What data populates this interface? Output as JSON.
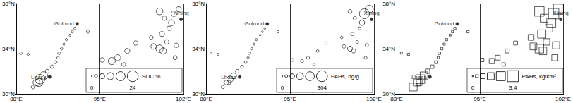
{
  "chart_data": [
    {
      "type": "scatter",
      "marker": "circle",
      "color": "#000000",
      "grid": true,
      "xlim": [
        88,
        102
      ],
      "ylim": [
        30,
        38
      ],
      "xticks": [
        {
          "value": 88,
          "label": "88°E"
        },
        {
          "value": 95,
          "label": "95°E"
        },
        {
          "value": 102,
          "label": "102°E"
        }
      ],
      "yticks": [
        {
          "value": 30,
          "label": "30°N"
        },
        {
          "value": 34,
          "label": "34°N"
        },
        {
          "value": 38,
          "label": "38°N"
        }
      ],
      "x": [
        92.9,
        92.7,
        92.5,
        92.2,
        92.0,
        91.8,
        91.6,
        91.5,
        91.3,
        91.0,
        90.6,
        90.3,
        90.0,
        89.7,
        89.4,
        88.4,
        89.0,
        95.2,
        96.0,
        96.5,
        97.3,
        97.0,
        98.0,
        99.5,
        100.0,
        100.3,
        100.6,
        100.2,
        100.8,
        101.0,
        100.4,
        101.2,
        100.0,
        101.6,
        99.3,
        101.4,
        101.3,
        94.0,
        89.9
      ],
      "y": [
        35.8,
        35.5,
        35.2,
        34.8,
        34.4,
        34.0,
        33.6,
        33.2,
        32.8,
        32.4,
        32.0,
        31.6,
        31.3,
        31.0,
        30.6,
        33.6,
        33.5,
        33.0,
        32.9,
        33.2,
        33.8,
        32.6,
        34.5,
        34.2,
        34.0,
        33.8,
        34.6,
        35.3,
        35.8,
        36.3,
        36.7,
        37.1,
        37.3,
        37.5,
        35.0,
        34.3,
        33.2,
        35.5,
        31.0
      ],
      "sizes": [
        0.5,
        0.4,
        0.3,
        0.5,
        0.4,
        0.6,
        0.8,
        0.5,
        1.0,
        1.5,
        2.0,
        12,
        18,
        8,
        1.5,
        0.5,
        0.5,
        3,
        9,
        6,
        4,
        2,
        3,
        5,
        10,
        7,
        3,
        4,
        3,
        6,
        3,
        5,
        8,
        4,
        2,
        3,
        2,
        1,
        12
      ],
      "size_legend": {
        "title": "SOC %",
        "values": [
          0,
          1,
          4,
          9,
          16,
          24
        ]
      },
      "cities": {
        "names": [
          "Golmud",
          "Lhasa",
          "Xining"
        ],
        "x": [
          93.1,
          90.8,
          101.8
        ],
        "y": [
          36.2,
          31.5,
          36.6
        ]
      }
    },
    {
      "type": "scatter",
      "marker": "circle",
      "color": "#000000",
      "grid": true,
      "xlim": [
        88,
        102
      ],
      "ylim": [
        30,
        38
      ],
      "xticks": [
        {
          "value": 88,
          "label": "88°E"
        },
        {
          "value": 95,
          "label": "95°E"
        },
        {
          "value": 102,
          "label": "102°E"
        }
      ],
      "yticks": [
        {
          "value": 30,
          "label": "30°N"
        },
        {
          "value": 34,
          "label": "34°N"
        },
        {
          "value": 38,
          "label": "38°N"
        }
      ],
      "x": [
        92.9,
        92.7,
        92.5,
        92.2,
        92.0,
        91.8,
        91.6,
        91.5,
        91.3,
        91.0,
        90.6,
        90.3,
        90.0,
        89.7,
        89.4,
        88.4,
        89.0,
        95.2,
        96.0,
        96.5,
        97.3,
        97.0,
        98.0,
        99.5,
        100.0,
        100.3,
        100.6,
        100.2,
        100.8,
        101.0,
        100.4,
        101.2,
        100.0,
        101.6,
        99.3,
        101.4,
        101.3,
        94.0,
        89.9
      ],
      "y": [
        35.8,
        35.5,
        35.2,
        34.8,
        34.4,
        34.0,
        33.6,
        33.2,
        32.8,
        32.4,
        32.0,
        31.6,
        31.3,
        31.0,
        30.6,
        33.6,
        33.5,
        33.0,
        32.9,
        33.2,
        33.8,
        32.6,
        34.5,
        34.2,
        34.0,
        33.8,
        34.6,
        35.3,
        35.8,
        36.3,
        36.7,
        37.1,
        37.3,
        37.5,
        35.0,
        34.3,
        33.2,
        35.5,
        31.0
      ],
      "sizes": [
        3,
        2,
        2,
        4,
        3,
        5,
        6,
        4,
        8,
        12,
        20,
        70,
        90,
        40,
        15,
        2,
        3,
        10,
        15,
        12,
        8,
        5,
        6,
        20,
        50,
        30,
        12,
        15,
        10,
        60,
        20,
        250,
        25,
        150,
        8,
        15,
        10,
        4,
        35
      ],
      "size_legend": {
        "title": "PAHs, ng/g",
        "values": [
          0,
          10,
          40,
          100,
          190,
          304
        ]
      },
      "cities": {
        "names": [
          "Golmud",
          "Lhasa",
          "Xining"
        ],
        "x": [
          93.1,
          90.8,
          101.8
        ],
        "y": [
          36.2,
          31.5,
          36.6
        ]
      }
    },
    {
      "type": "scatter",
      "marker": "square",
      "color": "#000000",
      "grid": true,
      "xlim": [
        88,
        102
      ],
      "ylim": [
        30,
        38
      ],
      "xticks": [
        {
          "value": 88,
          "label": "88°E"
        },
        {
          "value": 95,
          "label": "95°E"
        },
        {
          "value": 102,
          "label": "102°E"
        }
      ],
      "yticks": [
        {
          "value": 30,
          "label": "30°N"
        },
        {
          "value": 34,
          "label": "34°N"
        },
        {
          "value": 38,
          "label": "38°N"
        }
      ],
      "x": [
        92.9,
        92.7,
        92.5,
        92.2,
        92.0,
        91.8,
        91.6,
        91.5,
        91.3,
        91.0,
        90.6,
        90.3,
        90.0,
        89.7,
        89.4,
        88.4,
        89.0,
        95.2,
        96.0,
        96.5,
        97.3,
        97.0,
        98.0,
        99.5,
        100.0,
        100.3,
        100.6,
        100.2,
        100.8,
        101.0,
        100.4,
        101.2,
        100.0,
        101.6,
        99.3,
        101.4,
        101.3,
        94.0,
        89.9
      ],
      "y": [
        35.8,
        35.5,
        35.2,
        34.8,
        34.4,
        34.0,
        33.6,
        33.2,
        32.8,
        32.4,
        32.0,
        31.6,
        31.3,
        31.0,
        30.6,
        33.6,
        33.5,
        33.0,
        32.9,
        33.2,
        33.8,
        32.6,
        34.5,
        34.2,
        34.0,
        33.8,
        34.6,
        35.3,
        35.8,
        36.3,
        36.7,
        37.1,
        37.3,
        37.5,
        35.0,
        34.3,
        33.2,
        35.5,
        31.0
      ],
      "sizes": [
        0.05,
        0.04,
        0.03,
        0.05,
        0.04,
        0.06,
        0.08,
        0.05,
        0.1,
        0.2,
        0.4,
        1.5,
        2.0,
        1.2,
        1.6,
        0.03,
        0.05,
        0.2,
        0.6,
        0.5,
        0.3,
        0.2,
        0.3,
        1.2,
        2.0,
        1.5,
        1.0,
        1.8,
        1.4,
        2.2,
        1.6,
        3.0,
        2.5,
        2.8,
        0.8,
        1.3,
        0.9,
        0.05,
        0.8
      ],
      "size_legend": {
        "title": "PAHs, kg/km²",
        "values": [
          0,
          0.1,
          0.5,
          1.2,
          2.2,
          3.4
        ]
      },
      "cities": {
        "names": [
          "Golmud",
          "Lhasa",
          "Xining"
        ],
        "x": [
          93.1,
          90.8,
          101.8
        ],
        "y": [
          36.2,
          31.5,
          36.6
        ]
      }
    }
  ]
}
